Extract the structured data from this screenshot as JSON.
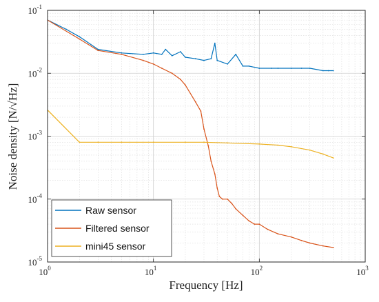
{
  "chart_data": {
    "type": "line",
    "xlabel": "Frequency [Hz]",
    "ylabel": "Noise density [N/√Hz]",
    "xscale": "log",
    "yscale": "log",
    "xlim": [
      1,
      1000
    ],
    "ylim": [
      1e-05,
      0.1
    ],
    "grid": true,
    "legend_location": "bottom-left",
    "x_ticks": [
      {
        "value": 1,
        "base": "10",
        "exp": "0"
      },
      {
        "value": 10,
        "base": "10",
        "exp": "1"
      },
      {
        "value": 100,
        "base": "10",
        "exp": "2"
      },
      {
        "value": 1000,
        "base": "10",
        "exp": "3"
      }
    ],
    "y_ticks": [
      {
        "value": 1e-05,
        "base": "10",
        "exp": "-5"
      },
      {
        "value": 0.0001,
        "base": "10",
        "exp": "-4"
      },
      {
        "value": 0.001,
        "base": "10",
        "exp": "-3"
      },
      {
        "value": 0.01,
        "base": "10",
        "exp": "-2"
      },
      {
        "value": 0.1,
        "base": "10",
        "exp": "-1"
      }
    ],
    "series": [
      {
        "name": "Raw sensor",
        "color": "#0072BD",
        "x": [
          1,
          1.5,
          2,
          3,
          5,
          8,
          10,
          12,
          13,
          15,
          18,
          20,
          25,
          30,
          35,
          38,
          40,
          50,
          60,
          70,
          80,
          100,
          130,
          150,
          200,
          250,
          300,
          400,
          450,
          500
        ],
        "y": [
          0.07,
          0.05,
          0.038,
          0.024,
          0.021,
          0.02,
          0.021,
          0.02,
          0.024,
          0.019,
          0.022,
          0.018,
          0.017,
          0.016,
          0.017,
          0.03,
          0.016,
          0.014,
          0.02,
          0.013,
          0.013,
          0.012,
          0.012,
          0.012,
          0.012,
          0.012,
          0.012,
          0.011,
          0.011,
          0.011
        ]
      },
      {
        "name": "Filtered sensor",
        "color": "#D95319",
        "x": [
          1,
          2,
          3,
          5,
          8,
          10,
          12,
          15,
          18,
          20,
          25,
          28,
          30,
          33,
          35,
          38,
          40,
          42,
          45,
          50,
          55,
          60,
          70,
          80,
          90,
          100,
          120,
          150,
          200,
          250,
          300,
          400,
          500
        ],
        "y": [
          0.07,
          0.035,
          0.023,
          0.02,
          0.016,
          0.014,
          0.012,
          0.01,
          0.008,
          0.0065,
          0.0035,
          0.0025,
          0.0013,
          0.0007,
          0.0004,
          0.00025,
          0.00015,
          0.00011,
          0.0001,
          0.0001,
          8.5e-05,
          7e-05,
          5.5e-05,
          4.5e-05,
          4e-05,
          4e-05,
          3.3e-05,
          2.8e-05,
          2.5e-05,
          2.2e-05,
          2e-05,
          1.8e-05,
          1.7e-05
        ]
      },
      {
        "name": "mini45 sensor",
        "color": "#EDB120",
        "x": [
          1,
          2,
          3,
          5,
          10,
          20,
          30,
          50,
          100,
          150,
          200,
          300,
          400,
          500
        ],
        "y": [
          0.0026,
          0.0008,
          0.0008,
          0.0008,
          0.0008,
          0.0008,
          0.0008,
          0.00078,
          0.00075,
          0.00072,
          0.00068,
          0.0006,
          0.00052,
          0.00045
        ]
      }
    ]
  }
}
